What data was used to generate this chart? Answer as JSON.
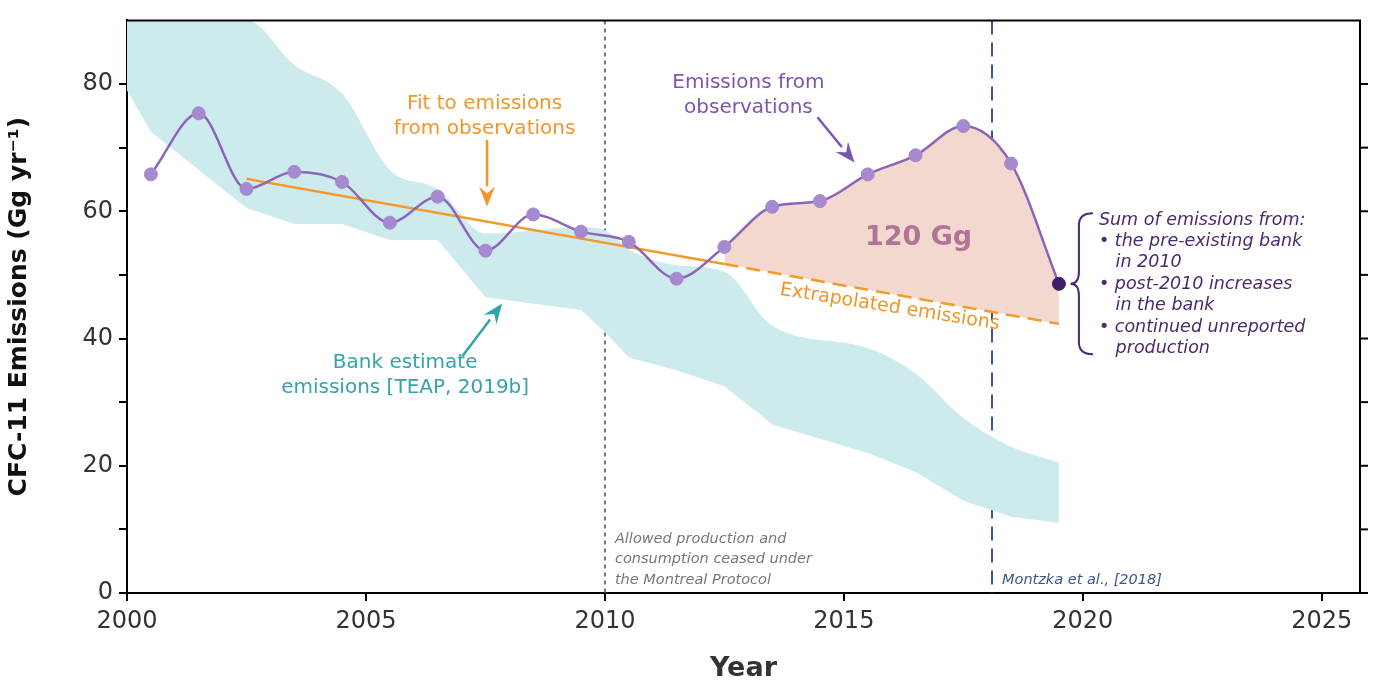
{
  "chart_data": {
    "type": "line",
    "xlabel": "Year",
    "ylabel": "CFC-11 Emissions (Gg yr⁻¹)",
    "xlim": [
      2000,
      2025.8
    ],
    "ylim": [
      0,
      90
    ],
    "xticks": [
      2000,
      2005,
      2010,
      2015,
      2020,
      2025
    ],
    "yticks": [
      0,
      {
        "value": 10,
        "label": null
      },
      20,
      {
        "value": 30,
        "label": null
      },
      40,
      {
        "value": 50,
        "label": null
      },
      60,
      {
        "value": 70,
        "label": null
      },
      80
    ],
    "legend": false,
    "series": [
      {
        "type": "area",
        "color": "#cdebed",
        "x": [
          2000,
          2000.5,
          2002.5,
          2003.5,
          2004.5,
          2005.5,
          2006.5,
          2007.5,
          2009.5,
          2010,
          2010.5,
          2011.5,
          2012.5,
          2013.5,
          2015.5,
          2016.5,
          2017.5,
          2018.5,
          2019.5
        ],
        "values": [
          null,
          null,
          null,
          null,
          null,
          null,
          null,
          null,
          null,
          null,
          null,
          null,
          null,
          null,
          null,
          null,
          null,
          null,
          null
        ],
        "upper": [
          90,
          90,
          90,
          83,
          78.5,
          66.5,
          63.5,
          56.5,
          57.5,
          57,
          54,
          51.5,
          50.5,
          42,
          38.5,
          34.5,
          27.5,
          23,
          20.5
        ],
        "lower": [
          79,
          72.5,
          60.5,
          58,
          58,
          55.5,
          55.5,
          46.5,
          44.5,
          41,
          37,
          35,
          32.5,
          26.5,
          22,
          19,
          14.5,
          12,
          11
        ]
      },
      {
        "type": "area",
        "color": "#f3d8d0",
        "x": [
          2012.5,
          2013.5,
          2014.5,
          2015.5,
          2016.5,
          2017.5,
          2018.5,
          2019.5
        ],
        "values": [
          54.4,
          60.7,
          61.6,
          65.8,
          68.8,
          73.4,
          67.5,
          48.6
        ]
      },
      {
        "type": "line",
        "color": "#f39a2b",
        "marker": "none",
        "line_style": "dashed",
        "x": [
          2012.5,
          2019.5
        ],
        "values": [
          51.7,
          42.3
        ]
      },
      {
        "type": "line",
        "color": "#8b66b8",
        "marker": "circle",
        "x": [
          2000.5,
          2001.5,
          2002.5,
          2003.5,
          2004.5,
          2005.5,
          2006.5,
          2007.5,
          2008.5,
          2009.5,
          2010.5,
          2011.5,
          2012.5,
          2013.5,
          2014.5,
          2015.5,
          2016.5,
          2017.5,
          2018.5,
          2019.5
        ],
        "values": [
          65.8,
          75.4,
          63.5,
          66.2,
          64.6,
          58.2,
          62.3,
          53.8,
          59.5,
          56.8,
          55.2,
          49.4,
          54.4,
          60.7,
          61.6,
          65.8,
          68.8,
          73.4,
          67.5,
          48.6
        ],
        "colors": [
          "#a58ad0",
          "#a58ad0",
          "#a58ad0",
          "#a58ad0",
          "#a58ad0",
          "#a58ad0",
          "#a58ad0",
          "#a58ad0",
          "#a58ad0",
          "#a58ad0",
          "#a58ad0",
          "#a58ad0",
          "#a58ad0",
          "#a58ad0",
          "#a58ad0",
          "#a58ad0",
          "#a58ad0",
          "#a58ad0",
          "#a58ad0",
          "#3f1f66"
        ]
      },
      {
        "type": "line",
        "color": "#f39a2b",
        "marker": "none",
        "line_style": "solid",
        "x": [
          2002.5,
          2012.5
        ],
        "values": [
          65.1,
          51.7
        ]
      }
    ],
    "ref_lines": [
      {
        "axis": "x",
        "value": 2010,
        "label": "Allowed production and\nconsumption ceased under\nthe Montreal Protocol",
        "color": "#777777",
        "line_style": "dotted"
      },
      {
        "axis": "x",
        "value": 2018.1,
        "label": "Montzka et al., [2018]",
        "color": "#3b5590",
        "line_style": "dashed"
      }
    ],
    "annotations": [
      "Fit to emissions\nfrom observations",
      "Emissions from\nobservations",
      {
        "text": "Bank estimate\nemissions [TEAP, 2019b]",
        "x": 2007.85,
        "y": 45.5
      },
      "120 Gg",
      "Extrapolated emissions",
      {
        "text": "Sum of emissions from:\n• the pre-existing bank\n   in 2010\n• post-2010 increases\n   in the bank\n• continued unreported\n   production",
        "x": 2019.5,
        "y": 48.6
      }
    ]
  }
}
